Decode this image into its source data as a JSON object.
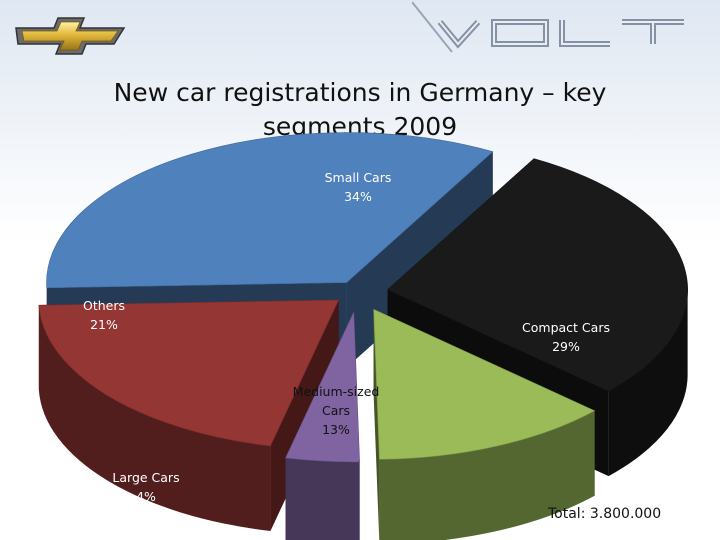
{
  "title": "New car registrations in Germany – key segments 2009",
  "total": "Total: 3.800.000",
  "logos": {
    "brand": "chevrolet-bowtie",
    "product": "VOLT"
  },
  "chart_data": {
    "type": "pie",
    "title": "New car registrations in Germany – key segments 2009",
    "slices": [
      {
        "label": "Small Cars",
        "value": 34,
        "value_label": "34%",
        "color": "#4f81bd"
      },
      {
        "label": "Compact Cars",
        "value": 29,
        "value_label": "29%",
        "color": "#1a1a1a"
      },
      {
        "label": "Medium-sized Cars",
        "value": 13,
        "value_label": "13%",
        "color": "#9bbb59"
      },
      {
        "label": "Large Cars",
        "value": 4,
        "value_label": "4%",
        "color": "#8064a2"
      },
      {
        "label": "Others",
        "value": 21,
        "value_label": "21%",
        "color": "#943634"
      }
    ],
    "unit": "%",
    "exploded": true,
    "style": "3d"
  }
}
